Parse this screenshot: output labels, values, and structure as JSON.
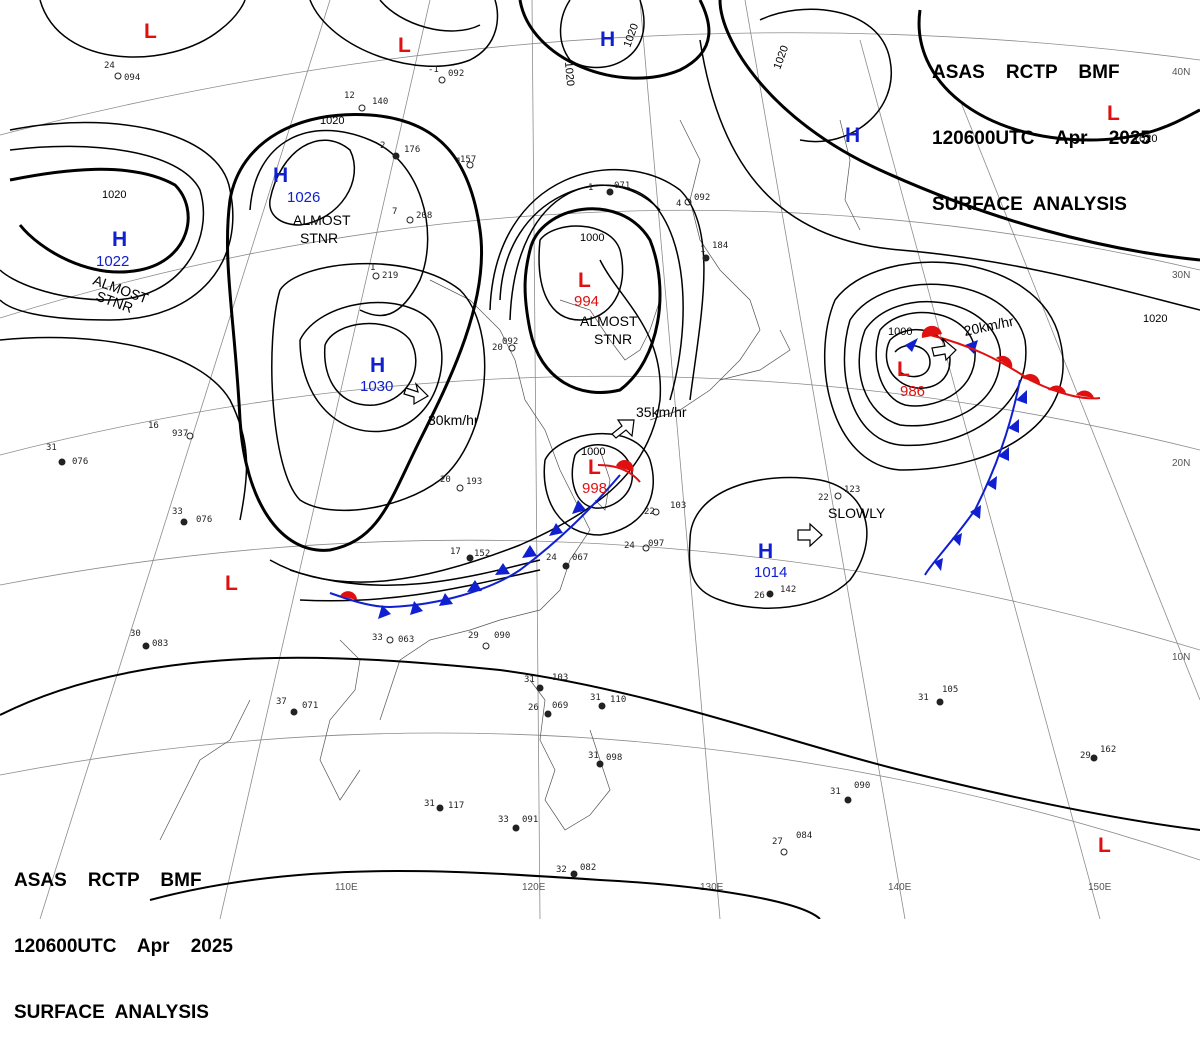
{
  "header": {
    "line1": "ASAS    RCTP    BMF",
    "line2": "120600UTC    Apr    2025",
    "line3": "SURFACE  ANALYSIS"
  },
  "colors": {
    "high": "#1020d0",
    "low": "#e01010",
    "warm_front": "#e01010",
    "cold_front": "#1020d0",
    "isobar": "#000000",
    "grid": "#8c8c8c"
  },
  "grid_labels": {
    "lon": [
      "110E",
      "120E",
      "130E",
      "140E",
      "150E"
    ],
    "lat": [
      "40N",
      "30N",
      "20N",
      "10N"
    ]
  },
  "centers": [
    {
      "id": "h-kazakh",
      "type": "H",
      "pressure": "1022",
      "note": "ALMOST STNR"
    },
    {
      "id": "h-mongolia",
      "type": "H",
      "pressure": "1026",
      "note": "ALMOST STNR"
    },
    {
      "id": "h-china",
      "type": "H",
      "pressure": "1030",
      "note": "30km/hr"
    },
    {
      "id": "l-yellowsea",
      "type": "L",
      "pressure": "994",
      "note": "ALMOST STNR"
    },
    {
      "id": "l-taiwan",
      "type": "L",
      "pressure": "998",
      "note": "35km/hr"
    },
    {
      "id": "l-pacific",
      "type": "L",
      "pressure": "986",
      "note": "20km/hr"
    },
    {
      "id": "h-pacific",
      "type": "H",
      "pressure": "1014",
      "note": "SLOWLY"
    },
    {
      "id": "h-north",
      "type": "H",
      "pressure": "",
      "note": ""
    },
    {
      "id": "h-northeast",
      "type": "H",
      "pressure": "",
      "note": ""
    },
    {
      "id": "l-nw1",
      "type": "L",
      "pressure": "",
      "note": ""
    },
    {
      "id": "l-nw2",
      "type": "L",
      "pressure": "",
      "note": ""
    },
    {
      "id": "l-ne",
      "type": "L",
      "pressure": "",
      "note": ""
    },
    {
      "id": "l-sw",
      "type": "L",
      "pressure": "",
      "note": ""
    },
    {
      "id": "l-se",
      "type": "L",
      "pressure": "",
      "note": ""
    }
  ],
  "isobar_labels": [
    "1020",
    "1020",
    "1020",
    "1020",
    "1020",
    "1020",
    "1020",
    "1000",
    "1000",
    "1000"
  ],
  "stations": [
    {
      "t": "24",
      "p": "094"
    },
    {
      "t": "-1",
      "p": "092"
    },
    {
      "t": "12",
      "p": "140"
    },
    {
      "t": "2",
      "p": "176"
    },
    {
      "t": "1",
      "p": "157"
    },
    {
      "t": "7",
      "p": "208"
    },
    {
      "t": "1",
      "p": "219"
    },
    {
      "t": "1",
      "p": "071"
    },
    {
      "t": "4",
      "p": "092"
    },
    {
      "t": "20",
      "p": "092"
    },
    {
      "t": "1",
      "p": "184"
    },
    {
      "t": "16",
      "p": "937"
    },
    {
      "t": "31",
      "p": "076"
    },
    {
      "t": "33",
      "p": "076"
    },
    {
      "t": "20",
      "p": "193"
    },
    {
      "t": "17",
      "p": "152"
    },
    {
      "t": "24",
      "p": "067"
    },
    {
      "t": "22",
      "p": "103"
    },
    {
      "t": "24",
      "p": "097"
    },
    {
      "t": "22",
      "p": "123"
    },
    {
      "t": "26",
      "p": "142"
    },
    {
      "t": "30",
      "p": "083"
    },
    {
      "t": "33",
      "p": "063"
    },
    {
      "t": "29",
      "p": "090"
    },
    {
      "t": "37",
      "p": "071"
    },
    {
      "t": "31",
      "p": "103"
    },
    {
      "t": "26",
      "p": "069"
    },
    {
      "t": "31",
      "p": "110"
    },
    {
      "t": "31",
      "p": "105"
    },
    {
      "t": "31",
      "p": "098"
    },
    {
      "t": "31",
      "p": "117"
    },
    {
      "t": "33",
      "p": "091"
    },
    {
      "t": "32",
      "p": "082"
    },
    {
      "t": "27",
      "p": "084"
    },
    {
      "t": "31",
      "p": "090"
    },
    {
      "t": "29",
      "p": "162"
    }
  ]
}
